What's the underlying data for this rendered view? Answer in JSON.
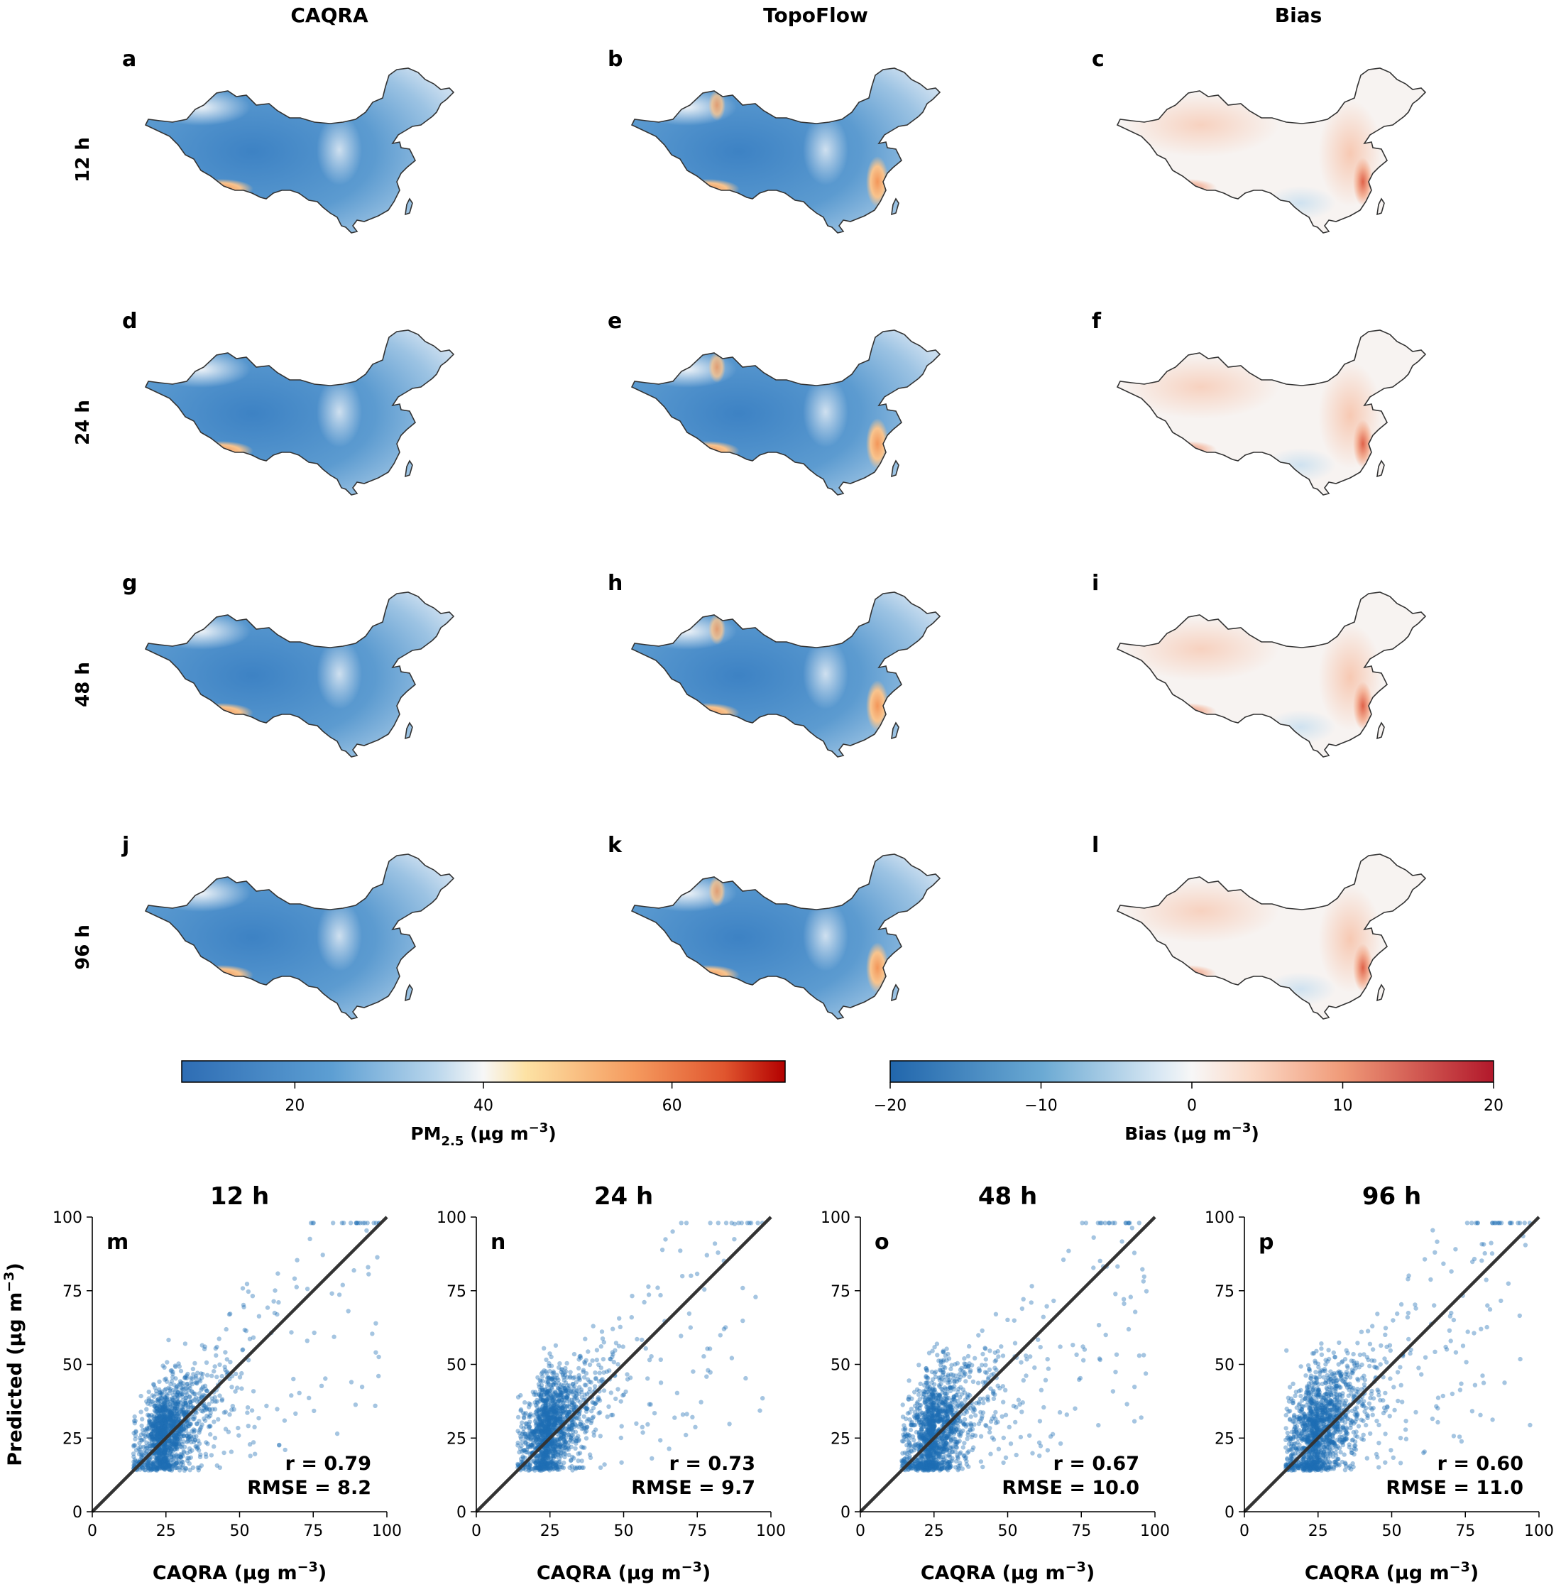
{
  "maps": {
    "column_titles": [
      "CAQRA",
      "TopoFlow",
      "Bias"
    ],
    "row_labels": [
      "12 h",
      "24 h",
      "48 h",
      "96 h"
    ],
    "panel_letters": [
      [
        "a",
        "b",
        "c"
      ],
      [
        "d",
        "e",
        "f"
      ],
      [
        "g",
        "h",
        "i"
      ],
      [
        "j",
        "k",
        "l"
      ]
    ],
    "colors": {
      "pm_low": "#3b7fbf",
      "pm_mid": "#f4f7fb",
      "pm_high": "#b40d0d",
      "bias_neg": "#2166ac",
      "bias_pos": "#b2182b",
      "border": "#333333"
    }
  },
  "colorbars": {
    "pm": {
      "range": [
        8,
        72
      ],
      "ticks": [
        20,
        40,
        60
      ],
      "tick_labels": [
        "20",
        "40",
        "60"
      ],
      "label_main": "PM",
      "label_sub": "2.5",
      "label_rest": " (μg m",
      "label_exp": "−3",
      "label_close": ")"
    },
    "bias": {
      "range": [
        -20,
        20
      ],
      "ticks": [
        -20,
        -10,
        0,
        10,
        20
      ],
      "tick_labels": [
        "−20",
        "−10",
        "0",
        "10",
        "20"
      ],
      "label_main": "Bias (μg m",
      "label_exp": "−3",
      "label_close": ")"
    }
  },
  "chart_data": [
    {
      "type": "scatter",
      "title": "12 h",
      "panel": "m",
      "xlim": [
        0,
        100
      ],
      "ylim": [
        0,
        100
      ],
      "xticks": [
        "0",
        "25",
        "50",
        "75",
        "100"
      ],
      "yticks": [
        "0",
        "25",
        "50",
        "75",
        "100"
      ],
      "xlabel": "CAQRA (μg m",
      "xlabel_exp": "−3",
      "xlabel_close": ")",
      "ylabel": "Predicted (μg m",
      "ylabel_exp": "−3",
      "ylabel_close": ")",
      "r": "r = 0.79",
      "rmse": "RMSE = 8.2",
      "point_color": "#1f6fb4",
      "identity_line": [
        [
          0,
          0
        ],
        [
          100,
          100
        ]
      ],
      "cloud": {
        "x_center": 25,
        "y_center": 27,
        "x_spread": 8,
        "y_spread": 8,
        "n": 1400,
        "min": 14
      }
    },
    {
      "type": "scatter",
      "title": "24 h",
      "panel": "n",
      "xlim": [
        0,
        100
      ],
      "ylim": [
        0,
        100
      ],
      "xticks": [
        "0",
        "25",
        "50",
        "75",
        "100"
      ],
      "yticks": [
        "0",
        "25",
        "50",
        "75",
        "100"
      ],
      "xlabel": "CAQRA (μg m",
      "xlabel_exp": "−3",
      "xlabel_close": ")",
      "r": "r = 0.73",
      "rmse": "RMSE = 9.7",
      "point_color": "#1f6fb4",
      "identity_line": [
        [
          0,
          0
        ],
        [
          100,
          100
        ]
      ],
      "cloud": {
        "x_center": 25,
        "y_center": 28,
        "x_spread": 8,
        "y_spread": 9,
        "n": 1400,
        "min": 14
      }
    },
    {
      "type": "scatter",
      "title": "48 h",
      "panel": "o",
      "xlim": [
        0,
        100
      ],
      "ylim": [
        0,
        100
      ],
      "xticks": [
        "0",
        "25",
        "50",
        "75",
        "100"
      ],
      "yticks": [
        "0",
        "25",
        "50",
        "75",
        "100"
      ],
      "xlabel": "CAQRA (μg m",
      "xlabel_exp": "−3",
      "xlabel_close": ")",
      "r": "r = 0.67",
      "rmse": "RMSE = 10.0",
      "point_color": "#1f6fb4",
      "identity_line": [
        [
          0,
          0
        ],
        [
          100,
          100
        ]
      ],
      "cloud": {
        "x_center": 25,
        "y_center": 27,
        "x_spread": 8,
        "y_spread": 10,
        "n": 1400,
        "min": 14
      }
    },
    {
      "type": "scatter",
      "title": "96 h",
      "panel": "p",
      "xlim": [
        0,
        100
      ],
      "ylim": [
        0,
        100
      ],
      "xticks": [
        "0",
        "25",
        "50",
        "75",
        "100"
      ],
      "yticks": [
        "0",
        "25",
        "50",
        "75",
        "100"
      ],
      "xlabel": "CAQRA (μg m",
      "xlabel_exp": "−3",
      "xlabel_close": ")",
      "r": "r = 0.60",
      "rmse": "RMSE = 11.0",
      "point_color": "#1f6fb4",
      "identity_line": [
        [
          0,
          0
        ],
        [
          100,
          100
        ]
      ],
      "cloud": {
        "x_center": 25,
        "y_center": 27,
        "x_spread": 9,
        "y_spread": 10,
        "n": 1400,
        "min": 14
      }
    }
  ]
}
